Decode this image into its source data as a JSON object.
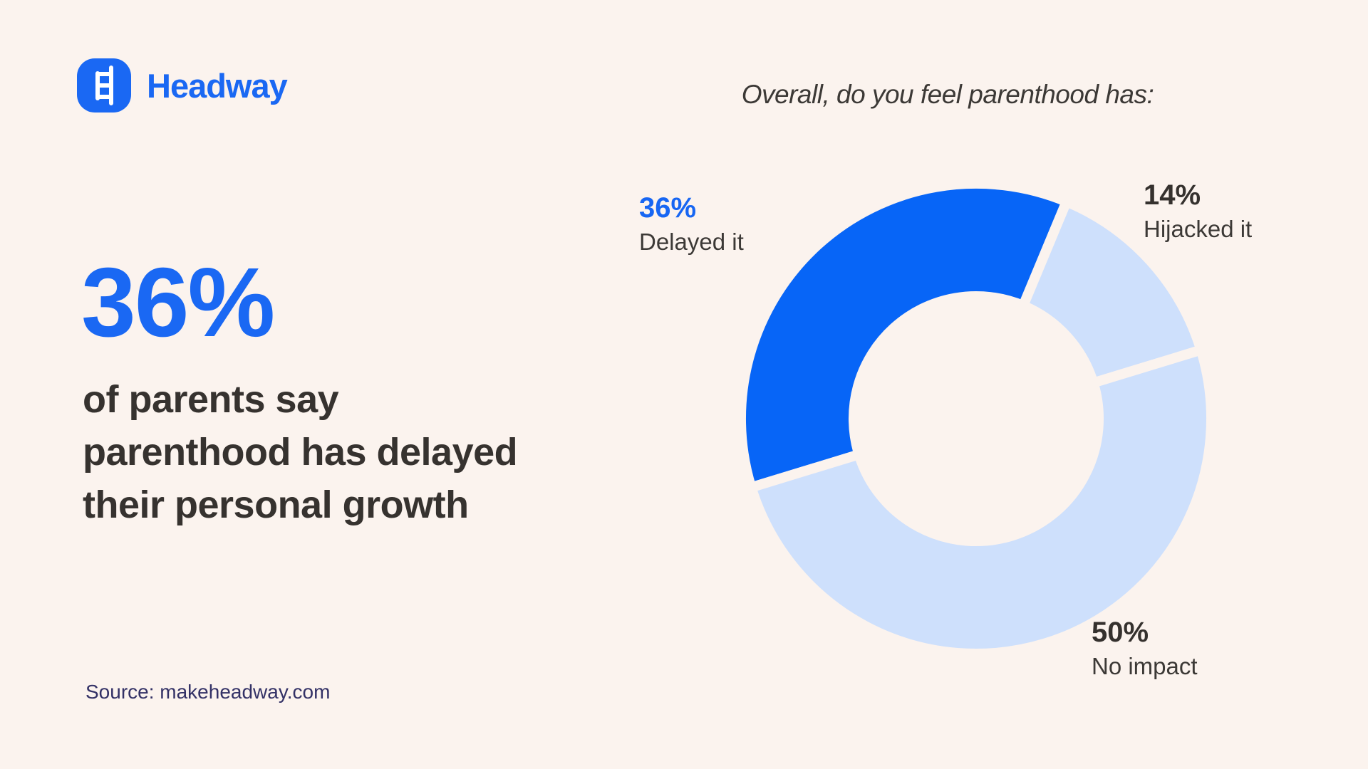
{
  "brand": {
    "name": "Headway"
  },
  "stat": {
    "value": "36%",
    "description_lines": [
      "of parents say",
      "parenthood has delayed",
      "their personal growth"
    ]
  },
  "source": {
    "text": "Source: makeheadway.com"
  },
  "chart_data": {
    "type": "pie",
    "donut": true,
    "title": "Overall, do you feel parenthood has:",
    "start_angle_deg": 163,
    "inner_radius_ratio": 0.52,
    "legend_position": "around-chart",
    "segments": [
      {
        "label": "Delayed it",
        "pct_label": "36%",
        "value": 36,
        "color": "#0765F7",
        "callout_color": "#1766F3"
      },
      {
        "label": "Hijacked it",
        "pct_label": "14%",
        "value": 14,
        "color": "#CEE0FC",
        "callout_color": "#35312E"
      },
      {
        "label": "No impact",
        "pct_label": "50%",
        "value": 50,
        "color": "#CEE0FC",
        "callout_color": "#35312E"
      }
    ]
  },
  "theme": {
    "background": "#FBF3EE",
    "brand_blue": "#1A68F3",
    "chart_blue": "#0765F7",
    "chart_light_blue": "#CEE0FC",
    "text_dark": "#36322F",
    "title_color": "#3C3936",
    "source_color": "#333166"
  }
}
